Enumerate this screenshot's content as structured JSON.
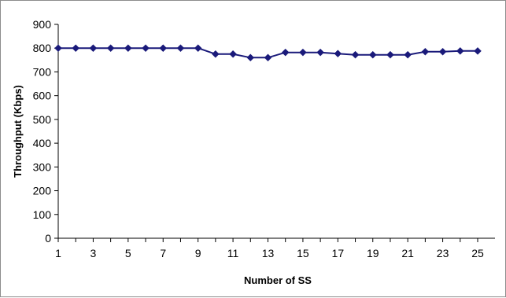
{
  "chart_data": {
    "type": "line",
    "xlabel": "Number of SS",
    "ylabel": "Throughput (Kbps)",
    "xlim": [
      1,
      25
    ],
    "ylim": [
      0,
      900
    ],
    "x_ticks": [
      "1",
      "3",
      "5",
      "7",
      "9",
      "11",
      "13",
      "15",
      "17",
      "19",
      "21",
      "23",
      "25"
    ],
    "y_ticks": [
      "0",
      "100",
      "200",
      "300",
      "400",
      "500",
      "600",
      "700",
      "800",
      "900"
    ],
    "grid": false,
    "legend": "none",
    "series": [
      {
        "color": "#1a1a7a",
        "marker": "diamond",
        "x": [
          1,
          2,
          3,
          4,
          5,
          6,
          7,
          8,
          9,
          10,
          11,
          12,
          13,
          14,
          15,
          16,
          17,
          18,
          19,
          20,
          21,
          22,
          23,
          24,
          25
        ],
        "y": [
          800,
          800,
          800,
          800,
          800,
          800,
          800,
          800,
          800,
          775,
          775,
          760,
          760,
          782,
          782,
          782,
          777,
          772,
          772,
          772,
          772,
          785,
          785,
          788,
          788
        ]
      }
    ]
  }
}
